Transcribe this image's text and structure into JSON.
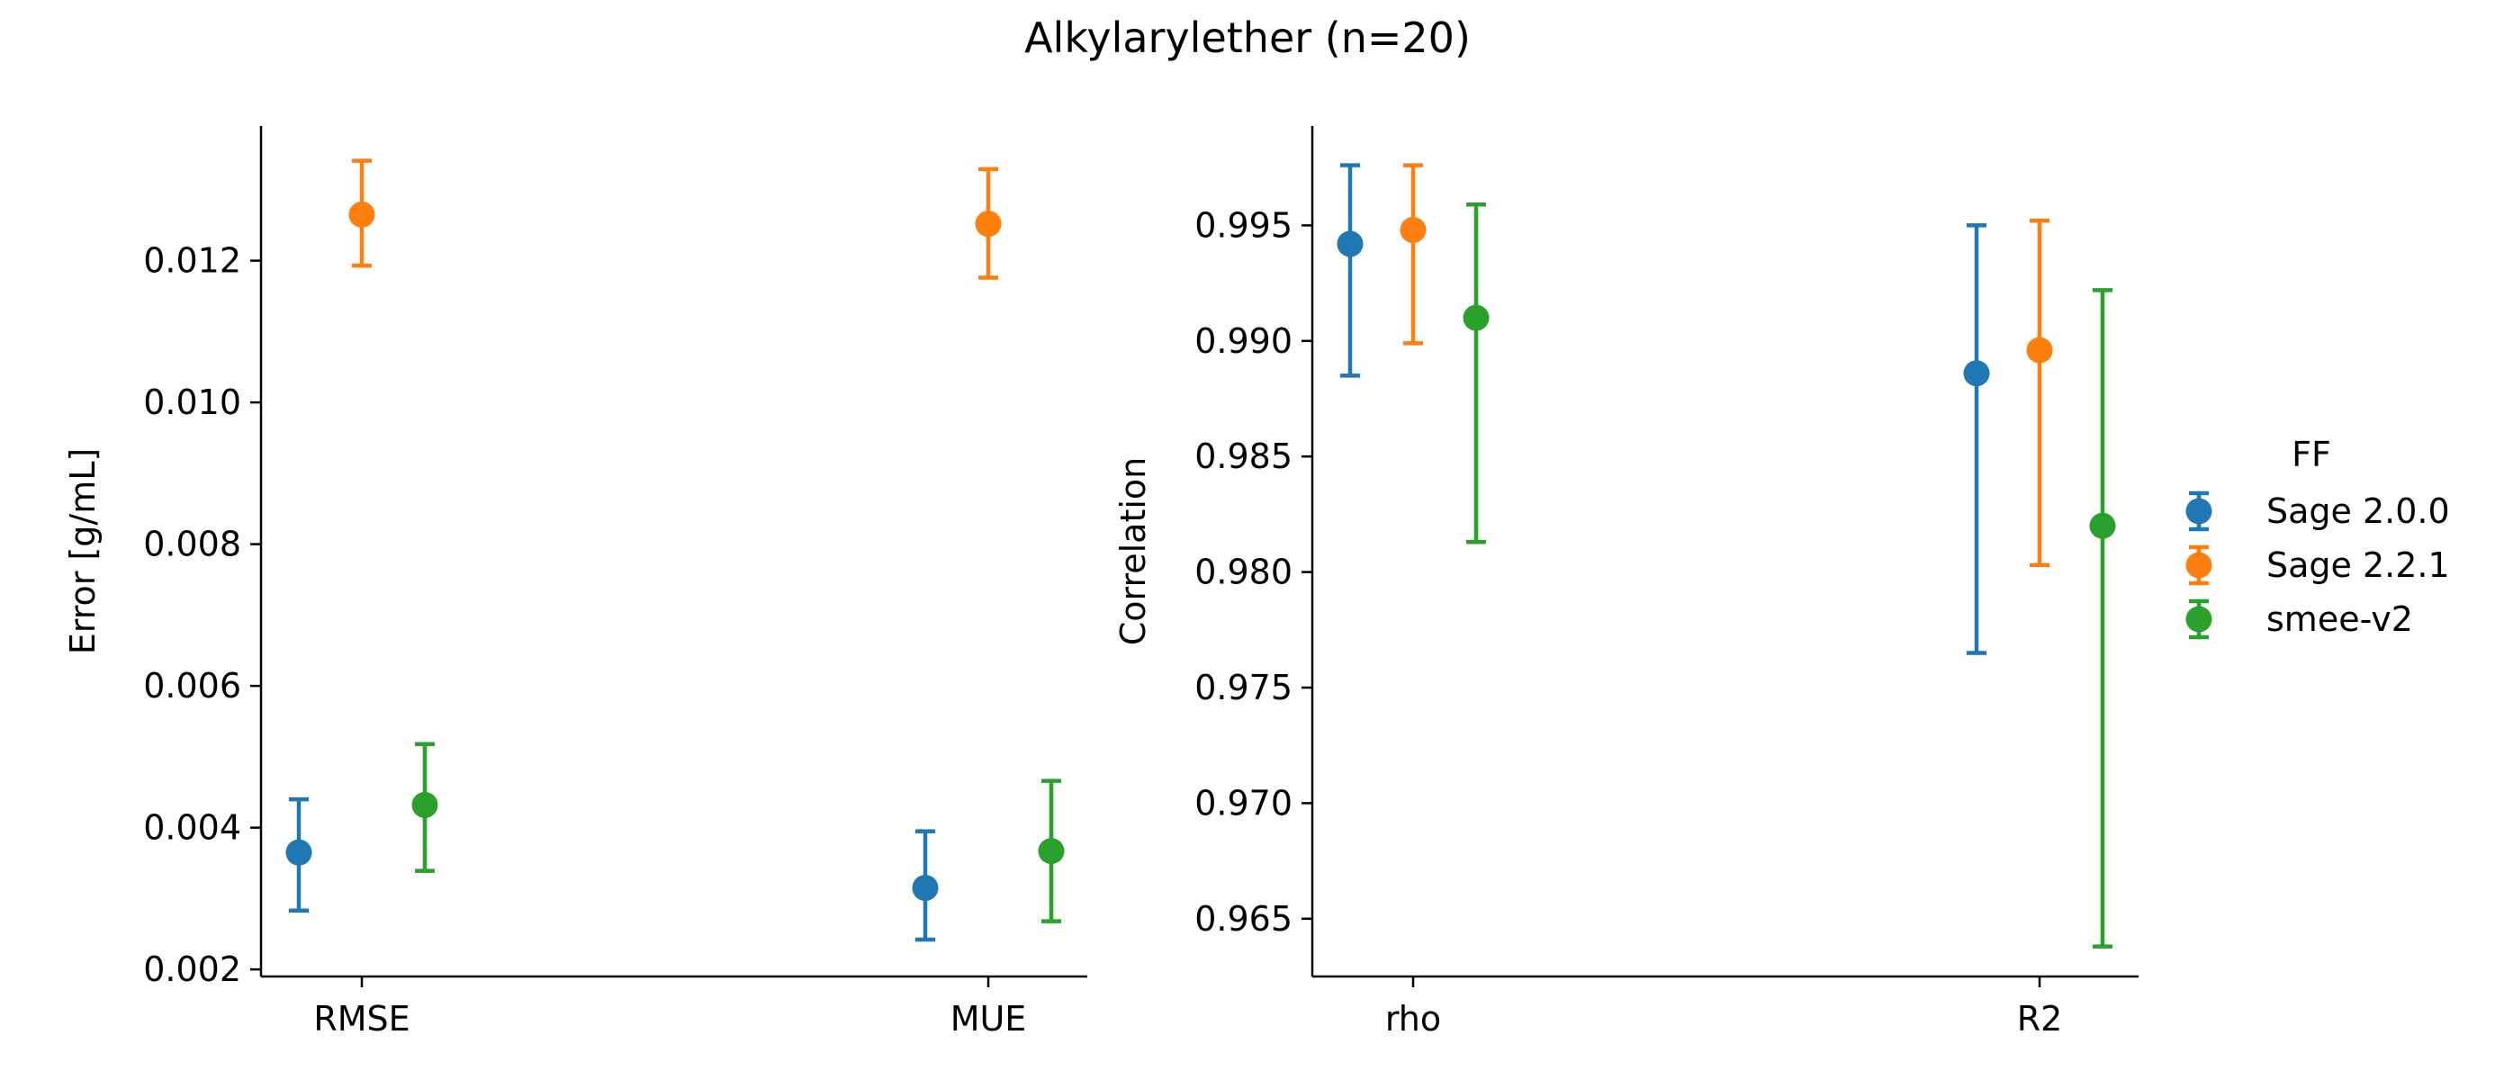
{
  "figure": {
    "title": "Alkylarylether (n=20)"
  },
  "legend": {
    "title": "FF",
    "placement": "right",
    "entries": [
      {
        "label": "Sage 2.0.0",
        "color": "#1f77b4"
      },
      {
        "label": "Sage 2.2.1",
        "color": "#ff7f0e"
      },
      {
        "label": "smee-v2",
        "color": "#2ca02c"
      }
    ]
  },
  "chart_data": [
    {
      "type": "scatter",
      "title": "",
      "xlabel": "",
      "ylabel": "Error [g/mL]",
      "categories": [
        "RMSE",
        "MUE"
      ],
      "ylim": [
        0.0019,
        0.0139
      ],
      "yticks": [
        0.002,
        0.004,
        0.006,
        0.008,
        0.01,
        0.012
      ],
      "ytick_labels": [
        "0.002",
        "0.004",
        "0.006",
        "0.008",
        "0.010",
        "0.012"
      ],
      "grid": false,
      "error_bars": true,
      "series": [
        {
          "name": "Sage 2.0.0",
          "values": [
            0.00365,
            0.00315
          ],
          "lower": [
            0.00283,
            0.00242
          ],
          "upper": [
            0.0044,
            0.00395
          ]
        },
        {
          "name": "Sage 2.2.1",
          "values": [
            0.01265,
            0.01252
          ],
          "lower": [
            0.01193,
            0.01176
          ],
          "upper": [
            0.01341,
            0.01329
          ]
        },
        {
          "name": "smee-v2",
          "values": [
            0.00432,
            0.00367
          ],
          "lower": [
            0.00339,
            0.00268
          ],
          "upper": [
            0.00518,
            0.00466
          ]
        }
      ]
    },
    {
      "type": "scatter",
      "title": "",
      "xlabel": "",
      "ylabel": "Correlation",
      "categories": [
        "rho",
        "R2"
      ],
      "ylim": [
        0.9625,
        0.9993
      ],
      "yticks": [
        0.965,
        0.97,
        0.975,
        0.98,
        0.985,
        0.99,
        0.995
      ],
      "ytick_labels": [
        "0.965",
        "0.970",
        "0.975",
        "0.980",
        "0.985",
        "0.990",
        "0.995"
      ],
      "grid": false,
      "error_bars": true,
      "series": [
        {
          "name": "Sage 2.0.0",
          "values": [
            0.9942,
            0.9886
          ],
          "lower": [
            0.9885,
            0.9765
          ],
          "upper": [
            0.9976,
            0.995
          ]
        },
        {
          "name": "Sage 2.2.1",
          "values": [
            0.9948,
            0.9896
          ],
          "lower": [
            0.9899,
            0.9803
          ],
          "upper": [
            0.9976,
            0.9952
          ]
        },
        {
          "name": "smee-v2",
          "values": [
            0.991,
            0.982
          ],
          "lower": [
            0.9813,
            0.9638
          ],
          "upper": [
            0.9959,
            0.9922
          ]
        }
      ]
    }
  ]
}
